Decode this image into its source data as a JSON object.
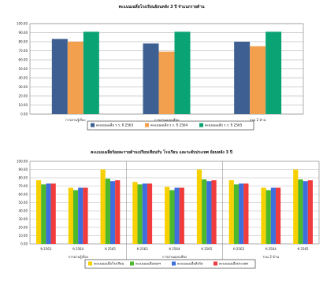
{
  "chart_data": [
    {
      "type": "bar",
      "title": "คะแนนเฉลี่ยโรงเรียนย้อนหลัง 3 ปี จำแนกรายด้าน",
      "categories": [
        "การอ่านรู้เรื่อง",
        "การอ่านออกเสียง",
        "รวม 2 ด้าน"
      ],
      "series": [
        {
          "name": "คะแนนเฉลี่ย ร.ร. ปี 2563",
          "values": [
            83,
            78,
            80
          ],
          "color": "#3d5f91"
        },
        {
          "name": "คะแนนเฉลี่ย ร.ร. ปี 2564",
          "values": [
            80,
            69,
            75
          ],
          "color": "#f2a04e"
        },
        {
          "name": "คะแนนเฉลี่ย ร.ร. ปี 2565",
          "values": [
            91,
            91,
            91
          ],
          "color": "#0aa373"
        }
      ],
      "ylim": [
        0,
        100
      ],
      "yticks": [
        "0.00",
        "10.00",
        "20.00",
        "30.00",
        "40.00",
        "50.00",
        "60.00",
        "70.00",
        "80.00",
        "90.00",
        "100.00"
      ],
      "grid": true,
      "legend": "bottom"
    },
    {
      "type": "bar",
      "title": "คะแนนเฉลี่ยร้อยละรายด้านเปรียบเทียบกับ โรงเรียน และระดับประเทศ ย้อนหลัง 3 ปี",
      "groups": [
        "การอ่านรู้เรื่อง",
        "การอ่านออกเสียง",
        "รวม 2 ด้าน"
      ],
      "categories": [
        "ปี 2563",
        "ปี 2564",
        "ปี 2565"
      ],
      "series": [
        {
          "name": "คะแนนเฉลี่ยโรงเรียน",
          "color": "#f6d000",
          "values": [
            [
              77,
              68,
              90
            ],
            [
              75,
              69,
              90
            ],
            [
              77,
              68,
              90
            ]
          ]
        },
        {
          "name": "คะแนนเฉลี่ยเขตฯ",
          "color": "#4cb82c",
          "values": [
            [
              72,
              65,
              79
            ],
            [
              72,
              65,
              78
            ],
            [
              72,
              65,
              78
            ]
          ]
        },
        {
          "name": "คะแนนเฉลี่ยสังกัด",
          "color": "#3e6fdc",
          "values": [
            [
              73,
              68,
              76
            ],
            [
              73,
              68,
              76
            ],
            [
              73,
              68,
              76
            ]
          ]
        },
        {
          "name": "คะแนนเฉลี่ยประเทศ",
          "color": "#f03c3c",
          "values": [
            [
              73,
              68,
              77
            ],
            [
              73,
              68,
              77
            ],
            [
              73,
              68,
              77
            ]
          ]
        }
      ],
      "ylim": [
        0,
        100
      ],
      "yticks": [
        "0.00",
        "10.00",
        "20.00",
        "30.00",
        "40.00",
        "50.00",
        "60.00",
        "70.00",
        "80.00",
        "90.00",
        "100.00"
      ],
      "grid": true,
      "legend": "bottom"
    }
  ]
}
